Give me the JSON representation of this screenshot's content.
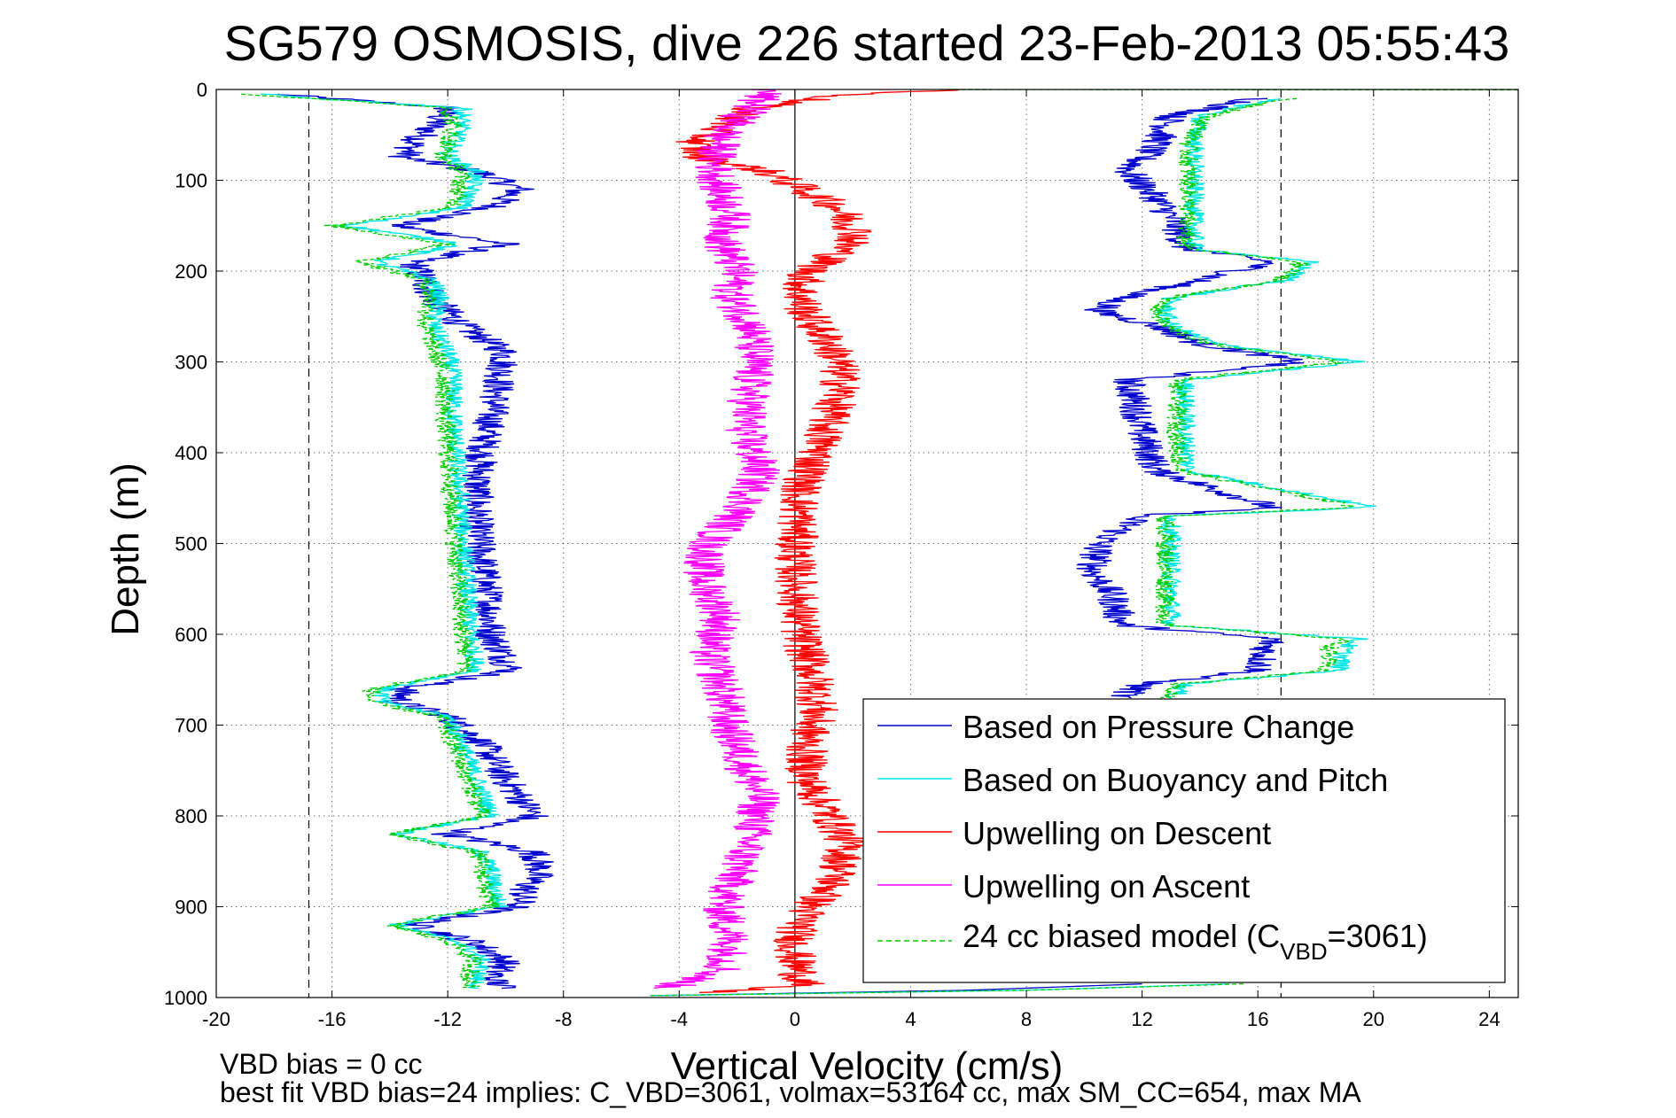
{
  "chart_data": {
    "type": "line",
    "title": "SG579 OSMOSIS, dive 226 started 23-Feb-2013 05:55:43",
    "xlabel": "Vertical Velocity (cm/s)",
    "ylabel": "Depth (m)",
    "xlim": [
      -20,
      25
    ],
    "ylim": [
      0,
      1000
    ],
    "y_reversed": true,
    "grid": true,
    "x_ticks": [
      "-20",
      "-16",
      "-12",
      "-8",
      "-4",
      "0",
      "4",
      "8",
      "12",
      "16",
      "20",
      "24"
    ],
    "y_ticks": [
      "0",
      "100",
      "200",
      "300",
      "400",
      "500",
      "600",
      "700",
      "800",
      "900",
      "1000"
    ],
    "reference_lines": [
      {
        "x": -16.8,
        "style": "dashed",
        "color": "#000000"
      },
      {
        "x": 0,
        "style": "solid",
        "color": "#000000"
      },
      {
        "x": 16.8,
        "style": "dashed",
        "color": "#000000"
      }
    ],
    "legend_position": "bottom-right",
    "legend": [
      {
        "label": "Based on Pressure Change",
        "color": "#0000cc",
        "dash": "solid"
      },
      {
        "label": "Based on Buoyancy and Pitch",
        "color": "#00e5e5",
        "dash": "solid"
      },
      {
        "label": "Upwelling on Descent",
        "color": "#ff0000",
        "dash": "solid"
      },
      {
        "label": "Upwelling on Ascent",
        "color": "#ff00ff",
        "dash": "solid"
      },
      {
        "label_main": "24 cc biased model (C",
        "label_sub": "VBD",
        "label_tail": "=3061)",
        "color": "#00cc00",
        "dash": "dashed"
      }
    ],
    "series": [
      {
        "key": "pressure",
        "color": "#0000cc",
        "noise": 0.6,
        "segments": [
          {
            "depth": [
              5,
              10,
              20,
              40,
              60,
              75,
              90,
              110,
              130,
              150,
              170,
              190,
              210,
              230,
              260,
              290,
              320,
              360,
              400,
              440,
              480,
              520,
              560,
              600,
              640,
              660,
              675,
              690,
              720,
              760,
              800,
              820,
              840,
              860,
              880,
              900,
              920,
              940,
              960,
              980,
              990
            ],
            "x": [
              -18,
              -16,
              -12,
              -12.5,
              -13.2,
              -13.5,
              -11,
              -9.5,
              -10.5,
              -13.8,
              -10,
              -13.2,
              -12.8,
              -12.5,
              -11.5,
              -10,
              -10.2,
              -10.5,
              -10.8,
              -11,
              -11,
              -10.8,
              -10.6,
              -10.5,
              -9.8,
              -13.5,
              -13.7,
              -12,
              -10.8,
              -10,
              -9,
              -12,
              -9,
              -8.8,
              -9.3,
              -9.6,
              -13.2,
              -11,
              -10,
              -10.5,
              -10
            ]
          },
          {
            "depth": [
              10,
              30,
              60,
              90,
              120,
              150,
              175,
              190,
              210,
              230,
              245,
              260,
              280,
              300,
              320,
              350,
              380,
              420,
              460,
              470,
              480,
              500,
              530,
              560,
              590,
              605,
              615,
              640,
              655,
              665,
              670
            ],
            "x": [
              16,
              13,
              12.5,
              11.5,
              12.5,
              13.2,
              13.5,
              16.5,
              14,
              11.2,
              10.5,
              12.5,
              14,
              17.5,
              11.5,
              11.8,
              12,
              12.5,
              16.5,
              11.8,
              11.5,
              10.5,
              10.3,
              11,
              11.3,
              16.5,
              16.3,
              16,
              12,
              11.5,
              11.2
            ]
          },
          {
            "depth": [
              985,
              992,
              998
            ],
            "x": [
              12,
              6,
              -5
            ]
          }
        ]
      },
      {
        "key": "buoyancy",
        "color": "#00e5e5",
        "noise": 0.35,
        "segments": [
          {
            "depth": [
              5,
              10,
              20,
              40,
              60,
              75,
              90,
              110,
              130,
              150,
              170,
              190,
              210,
              230,
              260,
              290,
              320,
              360,
              400,
              440,
              480,
              520,
              560,
              600,
              640,
              660,
              675,
              690,
              720,
              760,
              800,
              820,
              840,
              860,
              880,
              900,
              920,
              940,
              960,
              980,
              990
            ],
            "x": [
              -18.5,
              -16.5,
              -11.5,
              -11.5,
              -11.8,
              -12,
              -11,
              -11.2,
              -11.5,
              -15.5,
              -11.5,
              -14.5,
              -12.5,
              -12.3,
              -12.5,
              -12,
              -11.8,
              -11.8,
              -11.7,
              -11.6,
              -11.5,
              -11.4,
              -11.3,
              -11.2,
              -11,
              -14.2,
              -14.3,
              -12,
              -11.5,
              -11,
              -10.5,
              -13.8,
              -10.8,
              -10.5,
              -10.4,
              -10.2,
              -13.8,
              -11.5,
              -10.8,
              -11,
              -11
            ]
          },
          {
            "depth": [
              10,
              30,
              60,
              90,
              120,
              150,
              175,
              190,
              210,
              230,
              245,
              260,
              280,
              300,
              320,
              350,
              380,
              420,
              460,
              470,
              480,
              500,
              530,
              560,
              590,
              605,
              615,
              640,
              655,
              665,
              670
            ],
            "x": [
              16.5,
              14,
              13.8,
              13.8,
              13.8,
              13.8,
              13.8,
              17.8,
              17,
              13,
              12.8,
              13,
              14.5,
              19.5,
              13.5,
              13.5,
              13.5,
              13.6,
              20,
              13,
              13,
              13,
              13,
              13,
              13,
              19.5,
              19,
              18.8,
              13.5,
              13.2,
              13
            ]
          },
          {
            "depth": [
              985,
              992,
              998
            ],
            "x": [
              15,
              8,
              -5
            ]
          }
        ]
      },
      {
        "key": "descent",
        "color": "#ff0000",
        "noise": 0.75,
        "segments": [
          {
            "depth": [
              0,
              5,
              20,
              40,
              60,
              75,
              90,
              110,
              130,
              160,
              180,
              200,
              220,
              240,
              260,
              280,
              300,
              330,
              360,
              400,
              440,
              480,
              520,
              560,
              600,
              640,
              680,
              720,
              760,
              800,
              830,
              860,
              880,
              900,
              930,
              960,
              985,
              995
            ],
            "x": [
              6,
              2,
              -1.5,
              -2.5,
              -3.5,
              -3.2,
              -1,
              0.3,
              1.5,
              2.2,
              1.5,
              0.5,
              0.2,
              0.3,
              0.7,
              1.2,
              1.5,
              1.6,
              1.2,
              0.8,
              0.2,
              0.1,
              0,
              0.1,
              0.2,
              0.6,
              0.8,
              0.4,
              0.4,
              1.2,
              1.8,
              1.5,
              1.2,
              0.5,
              0,
              0,
              0.3,
              -3
            ]
          }
        ]
      },
      {
        "key": "ascent",
        "color": "#ff00ff",
        "noise": 0.75,
        "segments": [
          {
            "depth": [
              0,
              20,
              50,
              80,
              110,
              140,
              170,
              200,
              230,
              260,
              300,
              340,
              380,
              420,
              460,
              500,
              540,
              580,
              620,
              660,
              700,
              740,
              780,
              820,
              860,
              900,
              940,
              970,
              990
            ],
            "x": [
              -1,
              -1.5,
              -2.5,
              -2.8,
              -2.6,
              -2.2,
              -2.5,
              -2,
              -2.2,
              -1.5,
              -1.4,
              -1.6,
              -1.7,
              -1.2,
              -1.8,
              -3,
              -3.2,
              -2.5,
              -3,
              -2.5,
              -2.3,
              -1.8,
              -1.2,
              -1.5,
              -2,
              -2.5,
              -2.2,
              -2.5,
              -4.5
            ]
          }
        ]
      },
      {
        "key": "model",
        "color": "#00cc00",
        "dashed": true,
        "noise": 0.35,
        "segments": [
          {
            "depth": [
              5,
              10,
              20,
              40,
              60,
              75,
              90,
              110,
              130,
              150,
              170,
              190,
              210,
              230,
              260,
              290,
              320,
              360,
              400,
              440,
              480,
              520,
              560,
              600,
              640,
              660,
              675,
              690,
              720,
              760,
              800,
              820,
              840,
              860,
              880,
              900,
              920,
              940,
              960,
              980,
              990
            ],
            "x": [
              -19,
              -16.8,
              -12,
              -11.8,
              -12,
              -12.2,
              -11.5,
              -11.6,
              -11.8,
              -16,
              -12,
              -15,
              -12.8,
              -12.6,
              -12.8,
              -12.4,
              -12.1,
              -12.1,
              -12,
              -11.9,
              -11.8,
              -11.7,
              -11.6,
              -11.5,
              -11.3,
              -14.6,
              -14.7,
              -12.3,
              -11.8,
              -11.3,
              -10.8,
              -14,
              -11,
              -10.8,
              -10.7,
              -10.5,
              -14,
              -11.8,
              -11.1,
              -11.3,
              -11.2
            ]
          },
          {
            "depth": [
              10,
              30,
              60,
              90,
              120,
              150,
              175,
              190,
              210,
              230,
              245,
              260,
              280,
              300,
              320,
              350,
              380,
              420,
              460,
              470,
              480,
              500,
              530,
              560,
              590,
              605,
              615,
              640,
              655,
              665,
              670
            ],
            "x": [
              17,
              14.2,
              13.6,
              13.6,
              13.6,
              13.5,
              13.5,
              17.5,
              16.8,
              12.8,
              12.5,
              12.8,
              14.2,
              19,
              13.2,
              13.2,
              13.2,
              13.3,
              19.5,
              12.8,
              12.8,
              12.8,
              12.8,
              12.8,
              12.8,
              19,
              18.5,
              18.3,
              13.2,
              13,
              12.8
            ]
          },
          {
            "depth": [
              0,
              0.5
            ],
            "x": [
              5,
              25
            ]
          },
          {
            "depth": [
              985,
              992,
              998
            ],
            "x": [
              15.5,
              8,
              -5
            ]
          }
        ]
      }
    ]
  },
  "footnotes": {
    "line1": "VBD bias = 0 cc",
    "line2": "best fit VBD bias=24 implies: C_VBD=3061, volmax=53164 cc, max SM_CC=654, max MA"
  }
}
